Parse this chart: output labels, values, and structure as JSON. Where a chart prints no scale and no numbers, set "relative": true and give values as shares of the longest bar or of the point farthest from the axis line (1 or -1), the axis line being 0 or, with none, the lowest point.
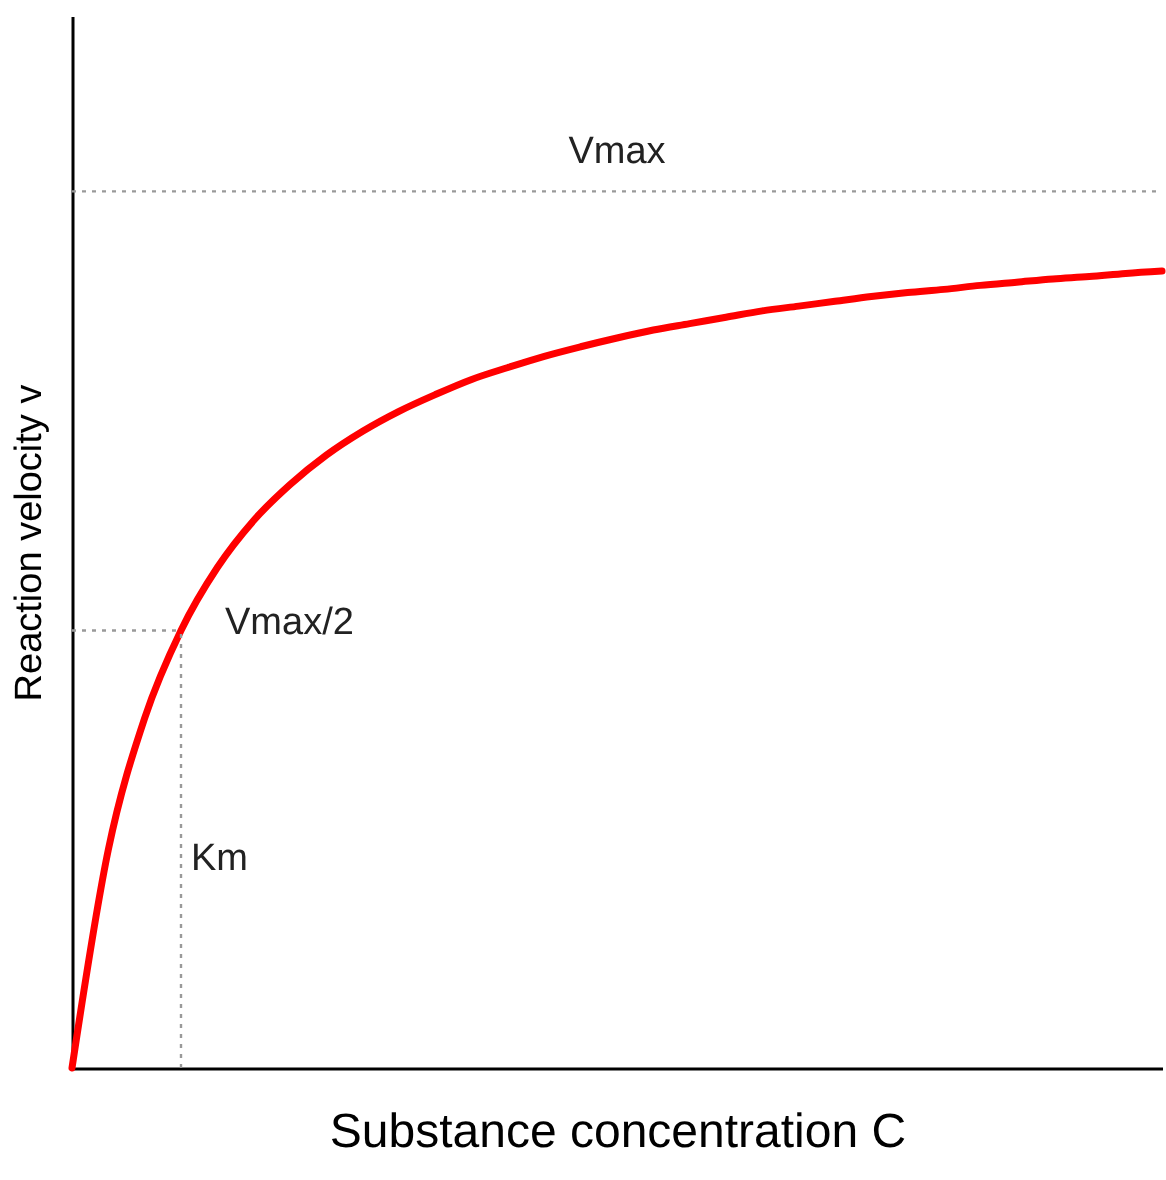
{
  "chart_data": {
    "type": "line",
    "relative": true,
    "xlabel": "Substance concentration C",
    "ylabel": "Reaction velocity v",
    "categories": [
      null,
      null,
      null,
      null,
      null,
      null,
      null,
      null,
      null,
      null,
      null,
      null,
      null,
      null,
      null,
      null,
      null,
      null,
      null,
      null,
      null,
      null,
      null,
      null,
      null,
      null,
      null,
      null,
      null,
      null,
      null
    ],
    "series": [
      {
        "color": "#ff0000",
        "values": [
          0,
          0.274,
          0.439,
          0.549,
          0.628,
          0.687,
          0.732,
          0.769,
          0.799,
          0.824,
          0.845,
          0.864,
          0.879,
          0.893,
          0.905,
          0.916,
          0.926,
          0.934,
          0.942,
          0.95,
          0.956,
          0.962,
          0.968,
          0.973,
          0.977,
          0.982,
          0.986,
          0.99,
          0.993,
          0.997,
          1.0
        ]
      }
    ],
    "ref_lines": [
      {
        "axis": "y",
        "value": 1.1,
        "label": "Vmax",
        "color": "#999999",
        "line_style": "dotted"
      },
      {
        "axis": "y",
        "value": 0.549,
        "label": "Vmax/2",
        "color": "#999999",
        "line_style": "dotted"
      }
    ],
    "annotations": [
      "Km"
    ],
    "grid": false,
    "tick_labels": false,
    "marker": "none",
    "line_style": "solid"
  }
}
